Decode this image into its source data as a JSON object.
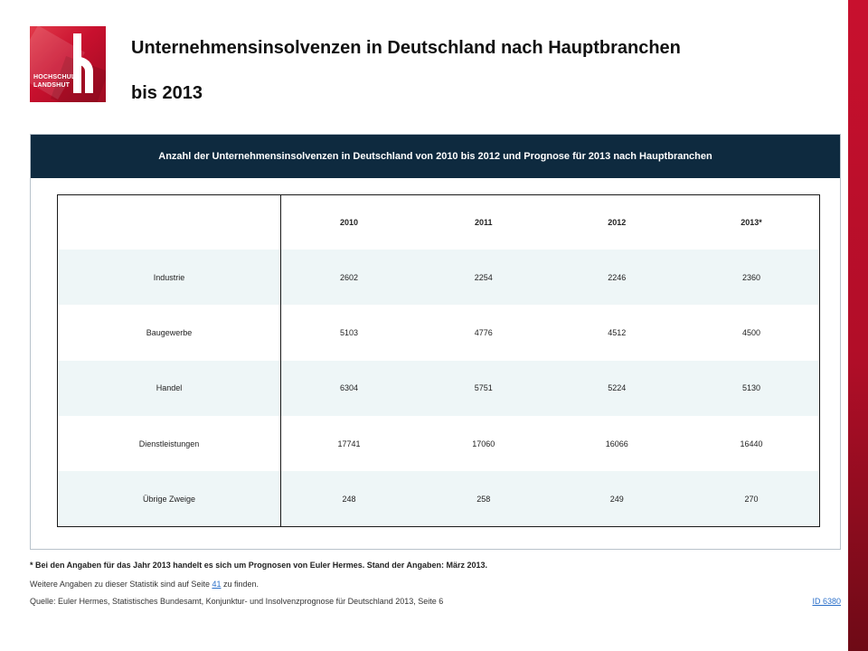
{
  "title": {
    "line1": "Unternehmensinsolvenzen in Deutschland nach Hauptbranchen",
    "line2": "bis 2013"
  },
  "logo": {
    "line1": "HOCHSCHULE",
    "line2": "LANDSHUT",
    "icon": "hochschule-landshut-logo"
  },
  "panel": {
    "header": "Anzahl der Unternehmensinsolvenzen in Deutschland von 2010 bis 2012 und Prognose für 2013 nach Hauptbranchen"
  },
  "table": {
    "columns": [
      "2010",
      "2011",
      "2012",
      "2013*"
    ],
    "rows": [
      {
        "label": "Industrie",
        "values": [
          "2602",
          "2254",
          "2246",
          "2360"
        ]
      },
      {
        "label": "Baugewerbe",
        "values": [
          "5103",
          "4776",
          "4512",
          "4500"
        ]
      },
      {
        "label": "Handel",
        "values": [
          "6304",
          "5751",
          "5224",
          "5130"
        ]
      },
      {
        "label": "Dienstleistungen",
        "values": [
          "17741",
          "17060",
          "16066",
          "16440"
        ]
      },
      {
        "label": "Übrige Zweige",
        "values": [
          "248",
          "258",
          "249",
          "270"
        ]
      }
    ]
  },
  "footer": {
    "footnote": "* Bei den Angaben für das Jahr 2013 handelt es sich um Prognosen von Euler Hermes. Stand der Angaben: März 2013.",
    "more_prefix": "Weitere Angaben zu dieser Statistik sind auf Seite ",
    "more_page": "41",
    "more_suffix": " zu finden.",
    "source": "Quelle: Euler Hermes, Statistisches Bundesamt, Konjunktur- und Insolvenzprognose für Deutschland 2013, Seite 6",
    "id": "ID 6380"
  },
  "colors": {
    "header_bg": "#0e2a3f",
    "accent_red": "#c8102e",
    "row_tint": "#eef6f7",
    "link": "#2a6fc9"
  }
}
